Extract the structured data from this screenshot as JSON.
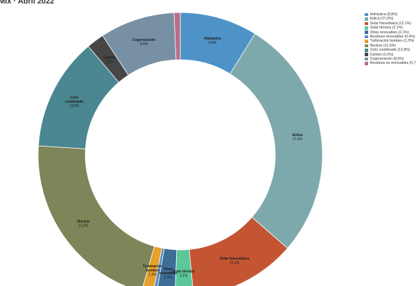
{
  "chart_data": {
    "type": "pie",
    "title": "Mix · Abril 2022",
    "hole": true,
    "legend_position": "right",
    "slices": [
      {
        "name": "Hidráulica",
        "value": 8.8,
        "value_label": "8,8%",
        "legend": "Hidráulica (8,8%)",
        "label_lines": [
          "Hidráulica"
        ],
        "color": "#4e93c7"
      },
      {
        "name": "Eólica",
        "value": 27.6,
        "value_label": "27,6%",
        "legend": "Eólica (27,6%)",
        "label_lines": [
          "Eólica"
        ],
        "color": "#7ea9ac"
      },
      {
        "name": "Solar fotovoltaica",
        "value": 12.1,
        "value_label": "12,1%",
        "legend": "Solar fotovoltaica (12,1%)",
        "label_lines": [
          "Solar fotovoltaica"
        ],
        "color": "#c45533"
      },
      {
        "name": "Solar térmica",
        "value": 2.1,
        "value_label": "2,1%",
        "legend": "Solar térmica (2,1%)",
        "label_lines": [
          "Solar térmica"
        ],
        "color": "#5bc79a"
      },
      {
        "name": "Otras renovables",
        "value": 2.1,
        "value_label": "2,1%",
        "legend": "Otras renovables (2,1%)",
        "label_lines": [
          "Otras",
          "renovables"
        ],
        "color": "#3c6e96"
      },
      {
        "name": "Residuos renovables",
        "value": 0.4,
        "value_label": "0,4%",
        "legend": "Residuos renovables (0,4%)",
        "label_lines": [],
        "color": "#5b8fc9"
      },
      {
        "name": "Turbinación bombeo",
        "value": 1.3,
        "value_label": "1,3%",
        "legend": "Turbinación bombeo (1,3%)",
        "label_lines": [
          "Turbinación",
          "bombeo"
        ],
        "color": "#e7a02b"
      },
      {
        "name": "Nuclear",
        "value": 21.6,
        "value_label": "21,6%",
        "legend": "Nuclear (21,6%)",
        "label_lines": [
          "Nuclear"
        ],
        "color": "#7e8558"
      },
      {
        "name": "Ciclo combinado",
        "value": 12.8,
        "value_label": "12,8%",
        "legend": "Ciclo combinado (12,8%)",
        "label_lines": [
          "Ciclo",
          "combinado"
        ],
        "color": "#4b8790"
      },
      {
        "name": "Carbón",
        "value": 2.0,
        "value_label": "2,0%",
        "legend": "Carbón (2,0%)",
        "label_lines": [
          "Carbón"
        ],
        "color": "#464646"
      },
      {
        "name": "Cogeneración",
        "value": 8.5,
        "value_label": "8,5%",
        "legend": "Cogeneración (8,5%)",
        "label_lines": [
          "Cogeneración"
        ],
        "color": "#7890a4"
      },
      {
        "name": "Residuos no renovables",
        "value": 0.7,
        "value_label": "0,7%",
        "legend": "Residuos no renovables (0,7%)",
        "label_lines": [],
        "color": "#b96e88"
      }
    ]
  }
}
